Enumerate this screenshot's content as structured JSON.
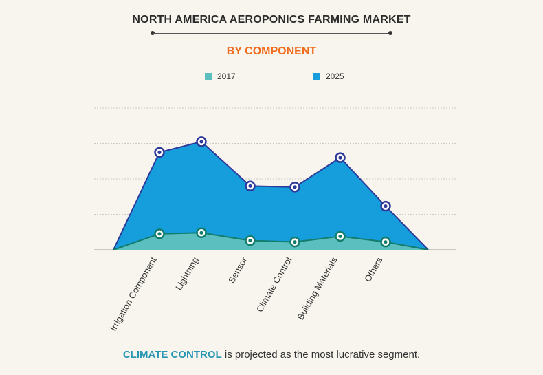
{
  "header": {
    "title": "NORTH AMERICA AEROPONICS FARMING MARKET",
    "subtitle": "BY COMPONENT"
  },
  "legend": [
    {
      "label": "2017",
      "color": "#5bbfc0"
    },
    {
      "label": "2025",
      "color": "#169ddb"
    }
  ],
  "footer": {
    "highlight": "CLIMATE CONTROL",
    "text": " is projected as the most lucrative segment."
  },
  "chart_data": {
    "type": "area",
    "categories": [
      "Irrigation Component",
      "Lightning",
      "Sensor",
      "Climate Control",
      "Building Materials",
      "Others"
    ],
    "series": [
      {
        "name": "2017",
        "values": [
          0.45,
          0.48,
          0.26,
          0.22,
          0.38,
          0.22
        ],
        "color": "#5bbfc0",
        "line": "#137d6b"
      },
      {
        "name": "2025",
        "values": [
          2.75,
          3.05,
          1.8,
          1.77,
          2.6,
          1.23
        ],
        "color": "#169ddb",
        "line": "#2e3a9a"
      }
    ],
    "ylim": [
      0,
      4
    ],
    "grid": true,
    "legend_position": "top"
  }
}
